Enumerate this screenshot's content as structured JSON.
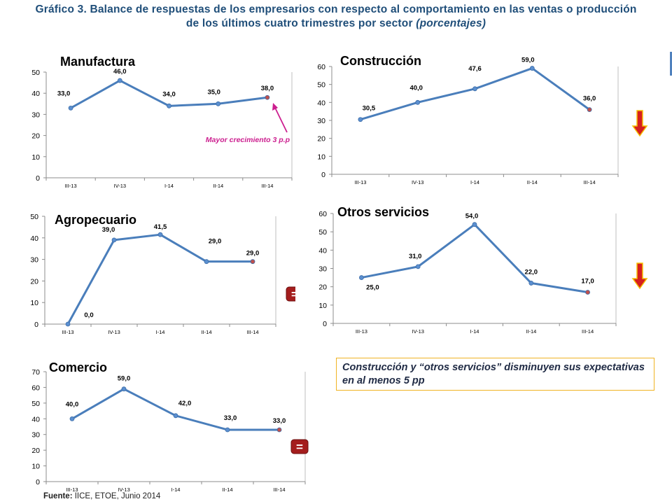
{
  "title": {
    "text": "Gráfico 3. Balance de respuestas de los empresarios con respecto al comportamiento en las ventas o producción",
    "line2": "de los últimos cuatro trimestres por sector",
    "emphasis": "(porcentajes)"
  },
  "colors": {
    "line": "#4a7ebb",
    "last_marker": "#c0504d",
    "annotation": "#cc1f8f",
    "title": "#1f4e79",
    "callout_border": "#f0b323"
  },
  "chart_data": [
    {
      "type": "line",
      "title": "Manufactura",
      "categories": [
        "III-13",
        "IV-13",
        "I-14",
        "II-14",
        "III-14"
      ],
      "values": [
        33.0,
        46.0,
        34.0,
        35.0,
        38.0
      ],
      "labels": [
        "33,0",
        "46,0",
        "34,0",
        "35,0",
        "38,0"
      ],
      "ylim": [
        0,
        50
      ],
      "yticks": [
        "0",
        "10",
        "20",
        "30",
        "40",
        "50"
      ],
      "annotation": "Mayor crecimiento 3 p.p",
      "indicator": "arrow-annotation"
    },
    {
      "type": "line",
      "title": "Construcción",
      "categories": [
        "III-13",
        "IV-13",
        "I-14",
        "II-14",
        "III-14"
      ],
      "values": [
        30.5,
        40.0,
        47.6,
        59.0,
        36.0
      ],
      "labels": [
        "30,5",
        "40,0",
        "47,6",
        "59,0",
        "36,0"
      ],
      "ylim": [
        0,
        60
      ],
      "yticks": [
        "0",
        "10",
        "20",
        "30",
        "40",
        "50",
        "60"
      ],
      "indicator": "down-arrow-icon"
    },
    {
      "type": "line",
      "title": "Agropecuario",
      "categories": [
        "III-13",
        "IV-13",
        "I-14",
        "II-14",
        "III-14"
      ],
      "values": [
        0.0,
        39.0,
        41.5,
        29.0,
        29.0
      ],
      "labels": [
        "0,0",
        "39,0",
        "41,5",
        "29,0",
        "29,0"
      ],
      "ylim": [
        0,
        50
      ],
      "yticks": [
        "0",
        "10",
        "20",
        "30",
        "40",
        "50"
      ],
      "indicator": "equal-icon",
      "indicator_text": "="
    },
    {
      "type": "line",
      "title": "Otros servicios",
      "categories": [
        "III-13",
        "IV-13",
        "I-14",
        "II-14",
        "III-14"
      ],
      "values": [
        25.0,
        31.0,
        54.0,
        22.0,
        17.0
      ],
      "labels": [
        "25,0",
        "31,0",
        "54,0",
        "22,0",
        "17,0"
      ],
      "ylim": [
        0,
        60
      ],
      "yticks": [
        "0",
        "10",
        "20",
        "30",
        "40",
        "50",
        "60"
      ],
      "indicator": "down-arrow-icon"
    },
    {
      "type": "line",
      "title": "Comercio",
      "categories": [
        "III-13",
        "IV-13",
        "I-14",
        "II-14",
        "III-14"
      ],
      "values": [
        40.0,
        59.0,
        42.0,
        33.0,
        33.0
      ],
      "labels": [
        "40,0",
        "59,0",
        "42,0",
        "33,0",
        "33,0"
      ],
      "ylim": [
        0,
        70
      ],
      "yticks": [
        "0",
        "10",
        "20",
        "30",
        "40",
        "50",
        "60",
        "70"
      ],
      "indicator": "equal-icon",
      "indicator_text": "="
    }
  ],
  "callout": {
    "text": "Construcción y “otros servicios” disminuyen sus expectativas en al menos 5 pp"
  },
  "source": {
    "label": "Fuente:",
    "text": "IICE, ETOE, Junio 2014"
  }
}
